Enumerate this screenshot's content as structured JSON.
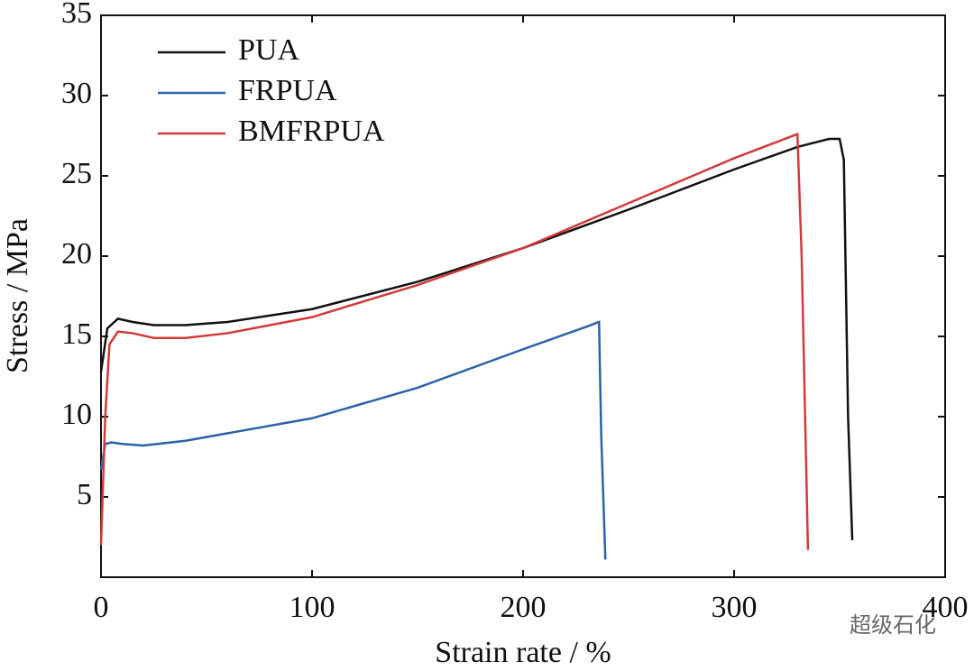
{
  "chart_data": {
    "type": "line",
    "xlabel": "Strain rate / %",
    "ylabel": "Stress / MPa",
    "xlim": [
      0,
      400
    ],
    "xticks": [
      0,
      100,
      200,
      300,
      400
    ],
    "ylim": [
      0,
      35
    ],
    "yticks": [
      5,
      10,
      15,
      20,
      25,
      30,
      35
    ],
    "legend": "upper left",
    "watermark": "超级石化",
    "series": [
      {
        "name": "PUA",
        "color": "#111111",
        "x": [
          0,
          3,
          8,
          15,
          25,
          40,
          60,
          100,
          150,
          200,
          250,
          300,
          330,
          345,
          350,
          352,
          354,
          356
        ],
        "values": [
          12.8,
          15.5,
          16.1,
          15.9,
          15.7,
          15.7,
          15.9,
          16.7,
          18.4,
          20.5,
          22.9,
          25.4,
          26.8,
          27.3,
          27.3,
          26,
          10,
          2.3
        ]
      },
      {
        "name": "FRPUA",
        "color": "#2b62a8",
        "x": [
          0,
          2,
          5,
          10,
          20,
          40,
          100,
          150,
          200,
          230,
          236,
          237,
          239
        ],
        "values": [
          6.7,
          8.3,
          8.4,
          8.3,
          8.2,
          8.5,
          9.9,
          11.8,
          14.2,
          15.6,
          15.9,
          9,
          1.1
        ]
      },
      {
        "name": "BMFRPUA",
        "color": "#d23a3a",
        "x": [
          0,
          2,
          4,
          8,
          15,
          25,
          40,
          60,
          100,
          150,
          200,
          250,
          300,
          330,
          332,
          335
        ],
        "values": [
          2.0,
          10,
          14.5,
          15.3,
          15.2,
          14.9,
          14.9,
          15.2,
          16.2,
          18.2,
          20.5,
          23.3,
          26.1,
          27.6,
          20,
          1.7
        ]
      }
    ]
  }
}
